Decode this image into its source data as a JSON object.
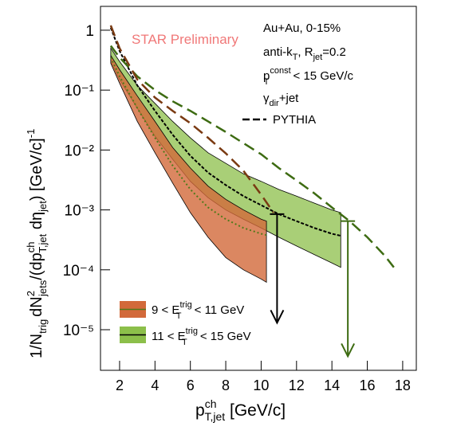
{
  "chart_data": {
    "type": "band",
    "log_y": true,
    "xlim": [
      0.92,
      18.77
    ],
    "ylim": [
      2.1e-06,
      2.5
    ],
    "xticks": [
      2,
      4,
      6,
      8,
      10,
      12,
      14,
      16,
      18
    ],
    "yticks": [
      1,
      {
        "value": 0.1,
        "label": "10⁻¹"
      },
      {
        "value": 0.01,
        "label": "10⁻²"
      },
      {
        "value": 0.001,
        "label": "10⁻³"
      },
      {
        "value": 0.0001,
        "label": "10⁻⁴"
      },
      {
        "value": 1e-05,
        "label": "10⁻⁵"
      }
    ],
    "x_label": [
      "p",
      "ch",
      "T,jet",
      " [GeV/c]"
    ],
    "y_label": [
      "1/N",
      "trig",
      "dN",
      "2",
      "jets",
      "/(dp",
      "ch",
      "T,jet",
      " dη",
      "jet",
      ") [GeV/c]",
      "-1"
    ],
    "watermark": "STAR Preliminary",
    "info": {
      "system": "Au+Au, 0-15%",
      "algo": [
        "anti-k",
        "T",
        ", R",
        "jet",
        "=0.2"
      ],
      "cut": [
        "p",
        "const",
        "T",
        " < 15 GeV/c"
      ],
      "trigger": [
        "γ",
        "dir",
        "+jet"
      ]
    },
    "series": [
      {
        "name": [
          "11 < E",
          "trig",
          "T",
          " < 15 GeV"
        ],
        "color": "#8cbf4a",
        "center_color": "#000000",
        "x": [
          1.5,
          2,
          3,
          4,
          5,
          6,
          7,
          8,
          9,
          10,
          11,
          12,
          13,
          14,
          14.5
        ],
        "upper": [
          0.5,
          0.3,
          0.12,
          0.06,
          0.03,
          0.016,
          0.009,
          0.006,
          0.004,
          0.003,
          0.0022,
          0.0017,
          0.0013,
          0.001,
          0.0009
        ],
        "lower": [
          0.3,
          0.15,
          0.05,
          0.017,
          0.007,
          0.003,
          0.0016,
          0.001,
          0.0007,
          0.0005,
          0.00035,
          0.00025,
          0.00018,
          0.00013,
          0.00011
        ],
        "center": [
          1.1,
          0.45,
          0.12,
          0.045,
          0.018,
          0.008,
          0.0042,
          0.0026,
          0.0017,
          0.0012,
          0.00085,
          0.00065,
          0.0005,
          0.0004,
          0.00037
        ]
      },
      {
        "name": [
          "9 < E",
          "trig",
          "T",
          " < 11 GeV"
        ],
        "color": "#d2693a",
        "center_color": "#4f7a1a",
        "x": [
          1.5,
          2,
          3,
          4,
          5,
          6,
          7,
          8,
          9,
          10,
          10.3
        ],
        "upper": [
          0.38,
          0.22,
          0.08,
          0.03,
          0.011,
          0.005,
          0.0025,
          0.0015,
          0.001,
          0.0007,
          0.00065
        ],
        "lower": [
          0.28,
          0.13,
          0.03,
          0.009,
          0.0028,
          0.0009,
          0.00035,
          0.00016,
          0.0001,
          7e-05,
          6.2e-05
        ],
        "center": [
          0.35,
          0.17,
          0.05,
          0.016,
          0.0055,
          0.0022,
          0.0011,
          0.0007,
          0.0005,
          0.0004,
          0.00038
        ]
      }
    ],
    "pythia_label": "PYTHIA",
    "pythia": [
      {
        "color": "#3d6b12",
        "x": [
          1.5,
          2,
          3,
          4,
          5,
          6,
          7,
          8,
          9,
          10,
          11,
          12,
          13,
          14,
          15,
          16,
          17,
          17.5
        ],
        "values": [
          0.55,
          0.35,
          0.17,
          0.1,
          0.065,
          0.045,
          0.03,
          0.02,
          0.013,
          0.0085,
          0.005,
          0.0031,
          0.0019,
          0.0011,
          0.00065,
          0.00035,
          0.00017,
          0.00011
        ]
      },
      {
        "color": "#7a3a12",
        "x": [
          1.5,
          2,
          3,
          4,
          5,
          6,
          7,
          8,
          9,
          10,
          10.7
        ],
        "values": [
          1.2,
          0.5,
          0.15,
          0.075,
          0.045,
          0.028,
          0.016,
          0.0088,
          0.0045,
          0.0018,
          0.0009
        ]
      }
    ],
    "upper_limits": [
      {
        "x": 10.9,
        "y": 0.00085,
        "y_to": 1.3e-05,
        "color": "#000000"
      },
      {
        "x": 14.9,
        "y": 0.00065,
        "y_to": 3.6e-06,
        "color": "#3d6b12"
      }
    ]
  }
}
